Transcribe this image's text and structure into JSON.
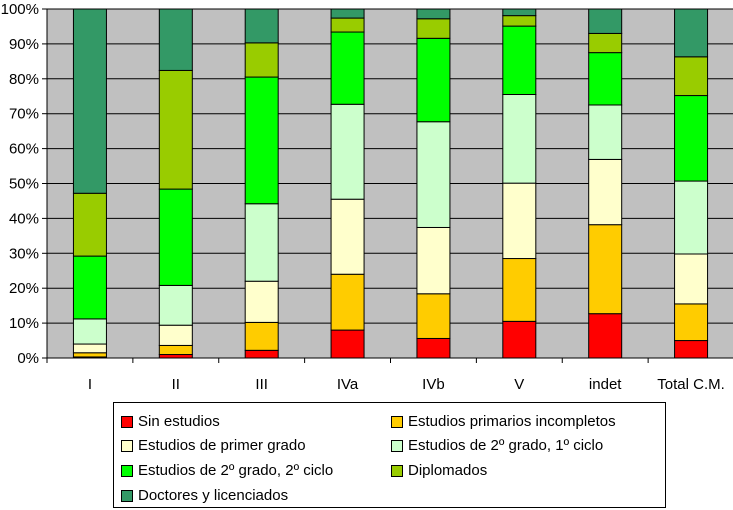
{
  "chart_data": {
    "type": "bar",
    "stacked": true,
    "categories": [
      "I",
      "II",
      "III",
      "IVa",
      "IVb",
      "V",
      "indet",
      "Total C.M."
    ],
    "yaxis": {
      "ticks": [
        "0%",
        "10%",
        "20%",
        "30%",
        "40%",
        "50%",
        "60%",
        "70%",
        "80%",
        "90%",
        "100%"
      ],
      "ylim": [
        0,
        100
      ]
    },
    "grid": true,
    "legend_position": "bottom",
    "series": [
      {
        "name": "Sin estudios",
        "color": "#ff0000",
        "values": [
          0.3,
          1.0,
          2.2,
          8.0,
          5.6,
          10.5,
          12.7,
          5.0
        ]
      },
      {
        "name": "Estudios primarios incompletos",
        "color": "#ffcc00",
        "values": [
          1.2,
          2.6,
          8.0,
          16.0,
          12.8,
          18.0,
          25.5,
          10.5
        ]
      },
      {
        "name": "Estudios de primer grado",
        "color": "#ffffcc",
        "values": [
          2.5,
          5.8,
          11.8,
          21.5,
          19.0,
          21.6,
          18.7,
          14.3
        ]
      },
      {
        "name": "Estudios de 2º grado, 1º ciclo",
        "color": "#ccffcc",
        "values": [
          7.2,
          11.4,
          22.2,
          27.2,
          30.3,
          25.4,
          15.6,
          20.9
        ]
      },
      {
        "name": "Estudios de 2º grado, 2º ciclo",
        "color": "#00ff00",
        "values": [
          18.0,
          27.6,
          36.3,
          20.7,
          23.9,
          19.6,
          15.0,
          24.5
        ]
      },
      {
        "name": "Diplomados",
        "color": "#99cc00",
        "values": [
          18.0,
          34.0,
          9.8,
          4.0,
          5.6,
          3.0,
          5.5,
          11.1
        ]
      },
      {
        "name": "Doctores y licenciados",
        "color": "#339966",
        "values": [
          52.8,
          17.6,
          9.7,
          2.6,
          2.8,
          1.9,
          7.0,
          13.7
        ]
      }
    ]
  }
}
